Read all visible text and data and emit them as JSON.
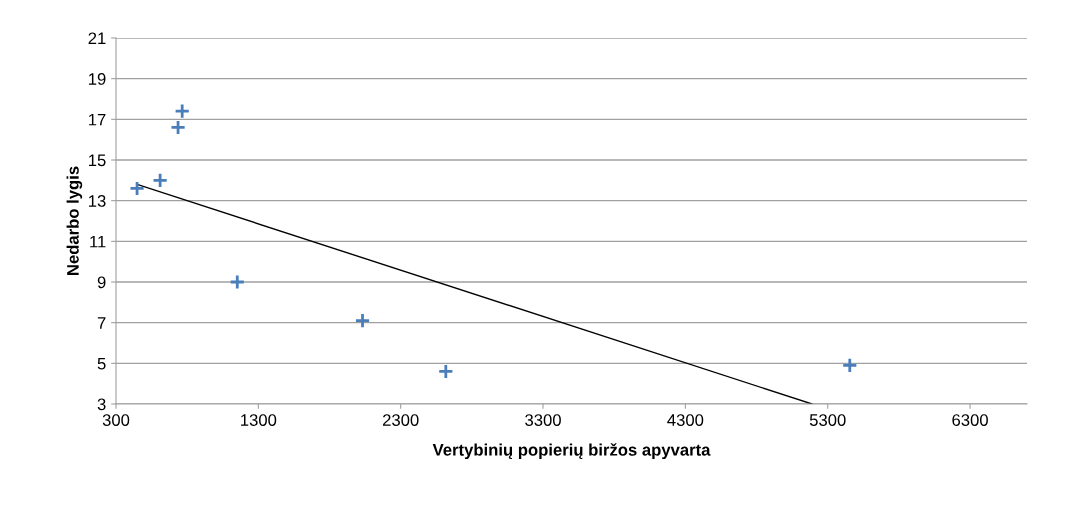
{
  "chart_data": {
    "type": "scatter",
    "xlabel": "Vertybinių popierių biržos apyvarta",
    "ylabel": "Nedarbo lygis",
    "xlim": [
      300,
      6700
    ],
    "xticks": [
      300,
      1300,
      2300,
      3300,
      4300,
      5300,
      6300
    ],
    "ylim": [
      3,
      21
    ],
    "yticks": [
      3,
      5,
      7,
      9,
      11,
      13,
      15,
      17,
      19,
      21
    ],
    "grid": "y",
    "series": [
      {
        "marker": "cross",
        "color": "#4a7ebb",
        "x": [
          448,
          610,
          736,
          765,
          1152,
          2032,
          2617,
          5455
        ],
        "values": [
          13.6,
          14.0,
          16.6,
          17.4,
          9.0,
          7.1,
          4.6,
          4.9
        ]
      },
      {
        "type": "line",
        "marker": "none",
        "color": "#000000",
        "x": [
          448,
          5190
        ],
        "values": [
          13.8,
          3
        ]
      }
    ]
  }
}
